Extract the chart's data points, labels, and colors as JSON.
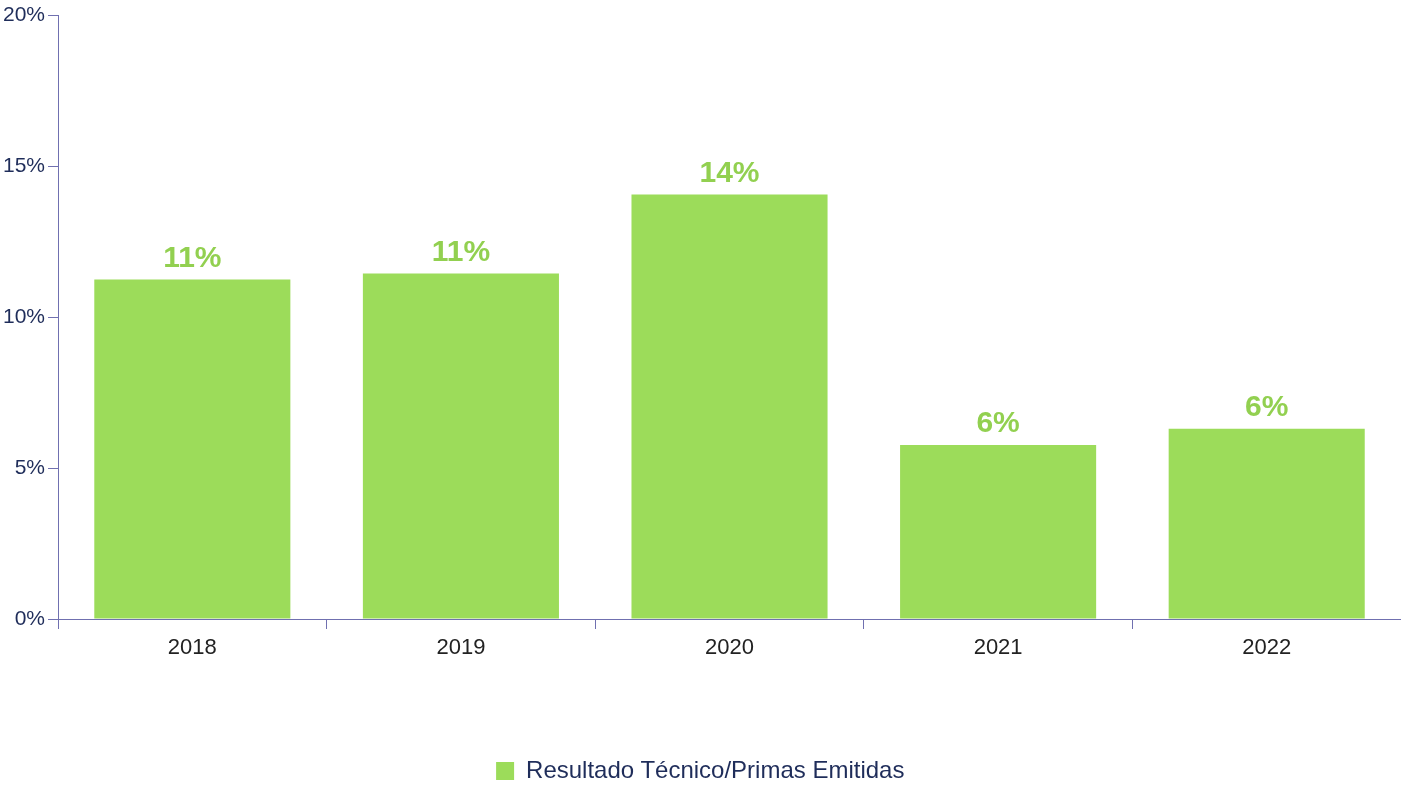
{
  "chart_data": {
    "type": "bar",
    "categories": [
      "2018",
      "2019",
      "2020",
      "2021",
      "2022"
    ],
    "series": [
      {
        "name": "Resultado Técnico/Primas Emitidas",
        "color": "#9cdc5a",
        "values": [
          11.25,
          11.45,
          14.07,
          5.77,
          6.31
        ],
        "value_labels": [
          "11%",
          "11%",
          "14%",
          "6%",
          "6%"
        ]
      }
    ],
    "ylim": [
      0,
      20
    ],
    "yticks": [
      {
        "value": 0,
        "label": "0%"
      },
      {
        "value": 5,
        "label": "5%"
      },
      {
        "value": 10,
        "label": "10%"
      },
      {
        "value": 15,
        "label": "15%"
      },
      {
        "value": 20,
        "label": "20%"
      }
    ],
    "grid": false,
    "legend": "bottom"
  }
}
